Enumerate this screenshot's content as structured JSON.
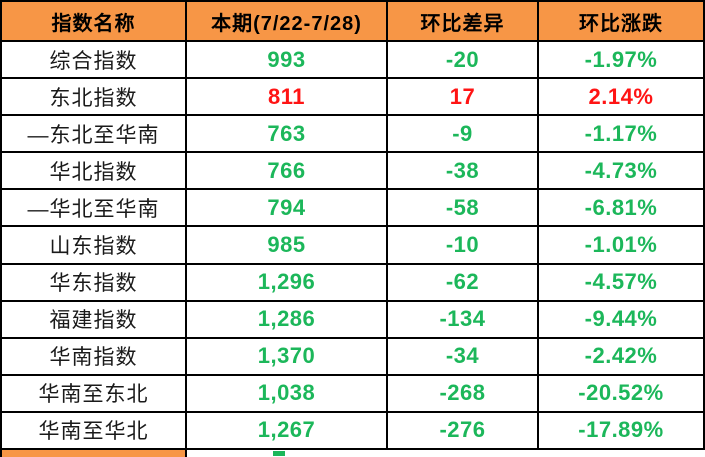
{
  "colors": {
    "header_bg": "#F79646",
    "grid": "#000000",
    "decline_green": "#1CB75A",
    "increase_red": "#FF1414",
    "name_text": "#1A1A1A"
  },
  "chart_data": {
    "type": "table",
    "columns": [
      "指数名称",
      "本期(7/22-7/28)",
      "环比差异",
      "环比涨跌"
    ],
    "rows": [
      {
        "name": "综合指数",
        "current": "993",
        "diff": "-20",
        "pct": "-1.97%",
        "trend": "down"
      },
      {
        "name": "东北指数",
        "current": "811",
        "diff": "17",
        "pct": "2.14%",
        "trend": "up"
      },
      {
        "name": "—东北至华南",
        "current": "763",
        "diff": "-9",
        "pct": "-1.17%",
        "trend": "down"
      },
      {
        "name": "华北指数",
        "current": "766",
        "diff": "-38",
        "pct": "-4.73%",
        "trend": "down"
      },
      {
        "name": "—华北至华南",
        "current": "794",
        "diff": "-58",
        "pct": "-6.81%",
        "trend": "down"
      },
      {
        "name": "山东指数",
        "current": "985",
        "diff": "-10",
        "pct": "-1.01%",
        "trend": "down"
      },
      {
        "name": "华东指数",
        "current": "1,296",
        "diff": "-62",
        "pct": "-4.57%",
        "trend": "down"
      },
      {
        "name": "福建指数",
        "current": "1,286",
        "diff": "-134",
        "pct": "-9.44%",
        "trend": "down"
      },
      {
        "name": "华南指数",
        "current": "1,370",
        "diff": "-34",
        "pct": "-2.42%",
        "trend": "down"
      },
      {
        "name": "华南至东北",
        "current": "1,038",
        "diff": "-268",
        "pct": "-20.52%",
        "trend": "down"
      },
      {
        "name": "华南至华北",
        "current": "1,267",
        "diff": "-276",
        "pct": "-17.89%",
        "trend": "down"
      }
    ]
  }
}
